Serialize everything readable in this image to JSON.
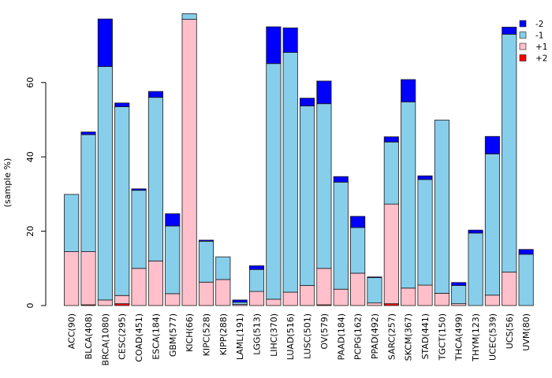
{
  "chart_data": {
    "type": "bar",
    "stacked": true,
    "title": "",
    "xlabel": "",
    "ylabel": "(sample %)",
    "ylim": [
      0,
      80
    ],
    "yticks": [
      0,
      20,
      40,
      60
    ],
    "categories": [
      "ACC(90)",
      "BLCA(408)",
      "BRCA(1080)",
      "CESC(295)",
      "COAD(451)",
      "ESCA(184)",
      "GBM(577)",
      "KICH(66)",
      "KIPC(528)",
      "KIPP(288)",
      "LAML(191)",
      "LGG(513)",
      "LIHC(370)",
      "LUAD(516)",
      "LUSC(501)",
      "OV(579)",
      "PAAD(184)",
      "PCPG(162)",
      "PPAD(492)",
      "SARC(257)",
      "SKCM(367)",
      "STAD(441)",
      "TGCT(150)",
      "THCA(499)",
      "THYM(123)",
      "UCEC(539)",
      "UCS(56)",
      "UVM(80)"
    ],
    "series": [
      {
        "name": "+2",
        "color": "#ff0000",
        "values": [
          0,
          0.2,
          0,
          0.5,
          0,
          0,
          0,
          0,
          0,
          0,
          0,
          0,
          0,
          0,
          0,
          0.2,
          0,
          0,
          0,
          0.5,
          0,
          0,
          0,
          0,
          0,
          0,
          0,
          0
        ]
      },
      {
        "name": "+1",
        "color": "#ffc0cb",
        "values": [
          14.5,
          14.3,
          1.5,
          2.2,
          10,
          12,
          3.2,
          77,
          6.3,
          7,
          0.3,
          3.8,
          1.7,
          3.6,
          5.4,
          9.8,
          4.4,
          8.7,
          0.7,
          26.8,
          4.7,
          5.5,
          3.3,
          0.5,
          0,
          2.8,
          9,
          0
        ]
      },
      {
        "name": "-1",
        "color": "#87ceeb",
        "values": [
          15.4,
          31.5,
          62.8,
          50.8,
          21,
          44,
          18.2,
          1.5,
          11,
          6.1,
          0.6,
          5.9,
          63.4,
          64.5,
          48.3,
          44.3,
          28.8,
          12.3,
          6.8,
          16.7,
          50.1,
          28.4,
          46.6,
          4.9,
          19.5,
          38,
          64,
          13.8
        ]
      },
      {
        "name": "-2",
        "color": "#0000ff",
        "values": [
          0,
          0.7,
          12.8,
          1,
          0.4,
          1.6,
          3.3,
          0,
          0.3,
          0,
          0.6,
          1,
          9.9,
          6.6,
          2.1,
          6.1,
          1.5,
          3,
          0.2,
          1.4,
          6,
          1,
          0,
          0.8,
          0.8,
          4.7,
          1.9,
          1.3
        ]
      }
    ],
    "legend": {
      "placement": "top-right",
      "entries": [
        {
          "label": "-2",
          "color": "#0000ff"
        },
        {
          "label": "-1",
          "color": "#87ceeb"
        },
        {
          "label": "+1",
          "color": "#ffc0cb"
        },
        {
          "label": "+2",
          "color": "#ff0000"
        }
      ]
    },
    "grid": false
  }
}
